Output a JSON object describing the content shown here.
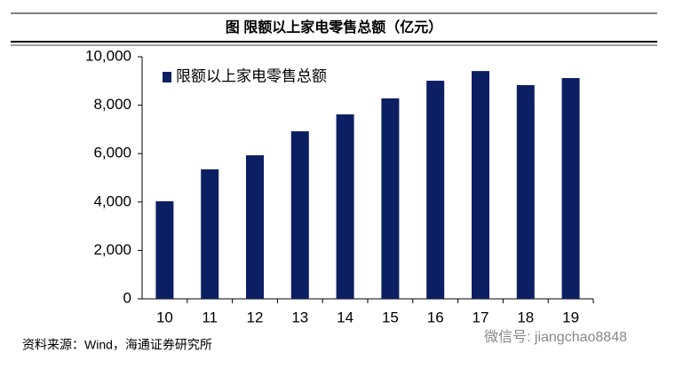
{
  "chart_data": {
    "type": "bar",
    "title": "图  限额以上家电零售总额（亿元）",
    "categories": [
      "10",
      "11",
      "12",
      "13",
      "14",
      "15",
      "16",
      "17",
      "18",
      "19"
    ],
    "series": [
      {
        "name": "限额以上家电零售总额",
        "color": "#0d1f63",
        "values": [
          4030,
          5350,
          5930,
          6920,
          7620,
          8280,
          9010,
          9410,
          8830,
          9120
        ]
      }
    ],
    "ylim": [
      0,
      10000
    ],
    "yticks": [
      0,
      {
        "value": 2000,
        "label": "2,000"
      },
      {
        "value": 4000,
        "label": "4,000"
      },
      {
        "value": 6000,
        "label": "6,000"
      },
      {
        "value": 8000,
        "label": "8,000"
      },
      {
        "value": 10000,
        "label": "10,000"
      }
    ],
    "legend": "upper-left",
    "source": "资料来源：Wind，海通证券研究所",
    "watermark": "微信号: jiangchao8848"
  }
}
